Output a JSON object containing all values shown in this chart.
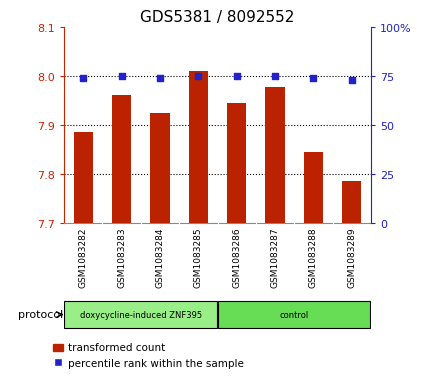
{
  "title": "GDS5381 / 8092552",
  "samples": [
    "GSM1083282",
    "GSM1083283",
    "GSM1083284",
    "GSM1083285",
    "GSM1083286",
    "GSM1083287",
    "GSM1083288",
    "GSM1083289"
  ],
  "bar_values": [
    7.885,
    7.96,
    7.925,
    8.01,
    7.945,
    7.978,
    7.845,
    7.785
  ],
  "dot_values": [
    74,
    75,
    74,
    75,
    75,
    75,
    74,
    73
  ],
  "ylim_left": [
    7.7,
    8.1
  ],
  "ylim_right": [
    0,
    100
  ],
  "yticks_left": [
    7.7,
    7.8,
    7.9,
    8.0,
    8.1
  ],
  "yticks_right": [
    0,
    25,
    50,
    75,
    100
  ],
  "bar_color": "#bb2200",
  "dot_color": "#2222cc",
  "protocol_groups": [
    {
      "label": "doxycycline-induced ZNF395",
      "count": 4,
      "color": "#99ee88"
    },
    {
      "label": "control",
      "count": 4,
      "color": "#66dd55"
    }
  ],
  "protocol_label": "protocol",
  "legend_bar_label": "transformed count",
  "legend_dot_label": "percentile rank within the sample",
  "tick_left_color": "#cc2200",
  "tick_right_color": "#2222cc",
  "bg_plot_color": "#ffffff",
  "bg_label_color": "#cccccc",
  "title_fontsize": 11
}
